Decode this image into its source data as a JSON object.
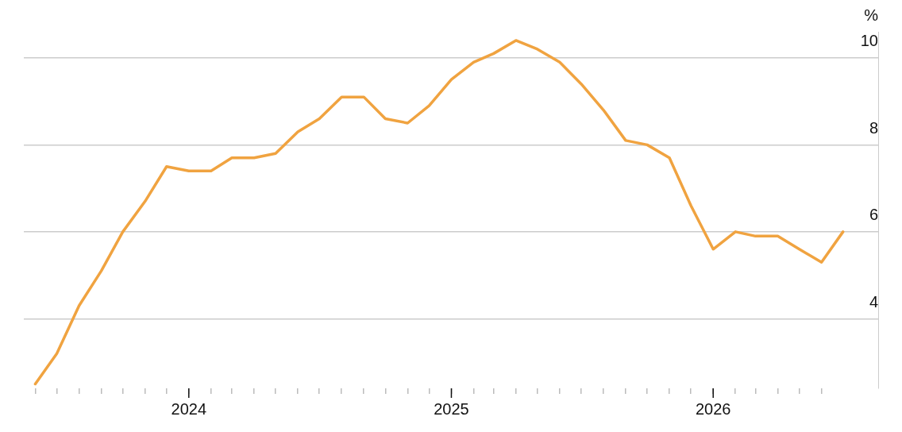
{
  "chart_data": {
    "type": "line",
    "ylabel": "%",
    "color": "#f0a340",
    "x": [
      "2023-06",
      "2023-07",
      "2023-08",
      "2023-09",
      "2023-10",
      "2023-11",
      "2023-12",
      "2024-01",
      "2024-02",
      "2024-03",
      "2024-04",
      "2024-05",
      "2024-06",
      "2024-07",
      "2024-08",
      "2024-09",
      "2024-10",
      "2024-11",
      "2024-12",
      "2025-01",
      "2025-02",
      "2025-03",
      "2025-04",
      "2025-05",
      "2025-06",
      "2025-07",
      "2025-08",
      "2025-09",
      "2025-10",
      "2025-11",
      "2025-12",
      "2026-01",
      "2026-02",
      "2026-03",
      "2026-04",
      "2026-05",
      "2026-06",
      "2026-07"
    ],
    "values": [
      2.5,
      3.2,
      4.3,
      5.1,
      6.0,
      6.7,
      7.5,
      7.4,
      7.4,
      7.7,
      7.7,
      7.8,
      8.3,
      8.6,
      9.1,
      9.1,
      8.6,
      8.5,
      8.9,
      9.5,
      9.9,
      10.1,
      10.4,
      10.2,
      9.9,
      9.4,
      8.8,
      8.1,
      8.0,
      7.7,
      6.6,
      5.6,
      6.0,
      5.9,
      5.9,
      5.6,
      5.3,
      6.0
    ],
    "xlim": [
      "2023-05-16",
      "2026-08-19"
    ],
    "xticks": [
      {
        "value": "2023-06",
        "label": null
      },
      {
        "value": "2023-07",
        "label": null
      },
      {
        "value": "2023-08",
        "label": null
      },
      {
        "value": "2023-09",
        "label": null
      },
      {
        "value": "2023-10",
        "label": null
      },
      {
        "value": "2023-11",
        "label": null
      },
      {
        "value": "2023-12",
        "label": null
      },
      {
        "value": "2024-01",
        "label": "2024"
      },
      {
        "value": "2024-02",
        "label": null
      },
      {
        "value": "2024-03",
        "label": null
      },
      {
        "value": "2024-04",
        "label": null
      },
      {
        "value": "2024-05",
        "label": null
      },
      {
        "value": "2024-06",
        "label": null
      },
      {
        "value": "2024-07",
        "label": null
      },
      {
        "value": "2024-08",
        "label": null
      },
      {
        "value": "2024-09",
        "label": null
      },
      {
        "value": "2024-10",
        "label": null
      },
      {
        "value": "2024-11",
        "label": null
      },
      {
        "value": "2024-12",
        "label": null
      },
      {
        "value": "2025-01",
        "label": "2025"
      },
      {
        "value": "2025-02",
        "label": null
      },
      {
        "value": "2025-03",
        "label": null
      },
      {
        "value": "2025-04",
        "label": null
      },
      {
        "value": "2025-05",
        "label": null
      },
      {
        "value": "2025-06",
        "label": null
      },
      {
        "value": "2025-07",
        "label": null
      },
      {
        "value": "2025-08",
        "label": null
      },
      {
        "value": "2025-09",
        "label": null
      },
      {
        "value": "2025-10",
        "label": null
      },
      {
        "value": "2025-11",
        "label": null
      },
      {
        "value": "2025-12",
        "label": null
      },
      {
        "value": "2026-01",
        "label": "2026"
      },
      {
        "value": "2026-02",
        "label": null
      },
      {
        "value": "2026-03",
        "label": null
      },
      {
        "value": "2026-04",
        "label": null
      },
      {
        "value": "2026-05",
        "label": null
      },
      {
        "value": "2026-06",
        "label": null
      }
    ],
    "ylim": [
      2.4,
      10.6
    ],
    "yticks": [
      4,
      6,
      8,
      10
    ],
    "grid": "y",
    "legend": false,
    "marker": "none",
    "line_style": "solid"
  }
}
